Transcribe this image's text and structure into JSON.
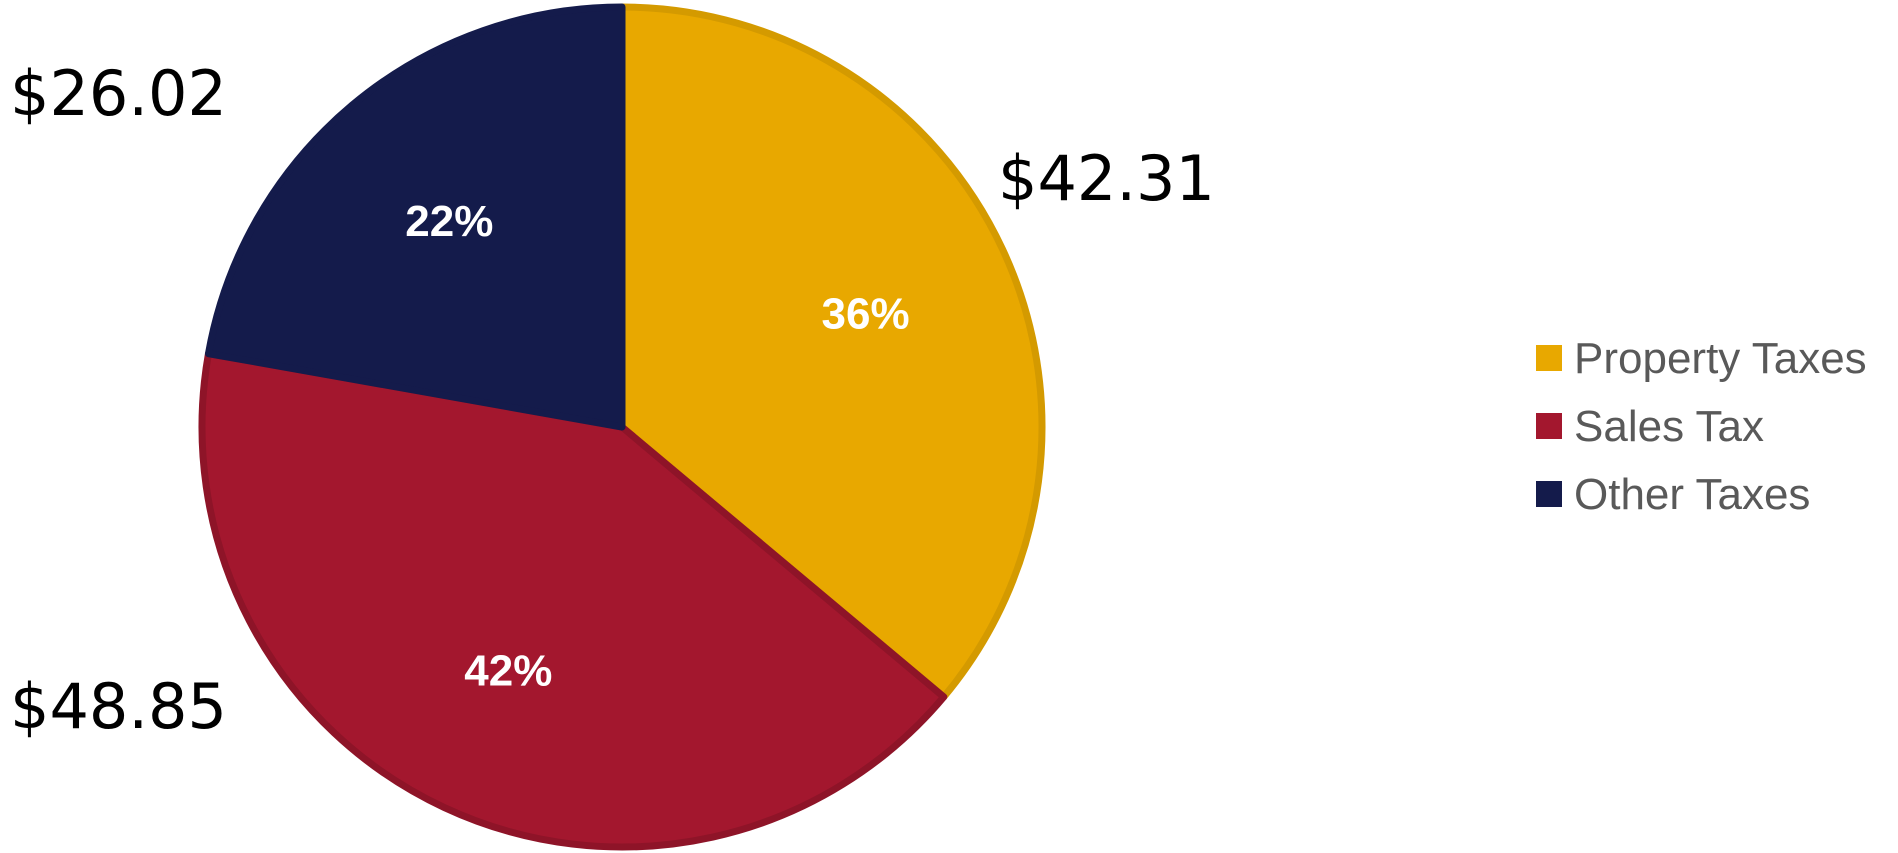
{
  "chart_data": {
    "type": "pie",
    "title": "",
    "slices": [
      {
        "name": "Property Taxes",
        "value": 42.31,
        "value_label": "$42.31",
        "percent_label": "36%",
        "color": "#E8A800",
        "stroke": "#D49A00"
      },
      {
        "name": "Sales Tax",
        "value": 48.85,
        "value_label": "$48.85",
        "percent_label": "42%",
        "color": "#A3172E",
        "stroke": "#8E1428"
      },
      {
        "name": "Other Taxes",
        "value": 26.02,
        "value_label": "$26.02",
        "percent_label": "22%",
        "color": "#141B4B",
        "stroke": "#141B4B"
      }
    ],
    "start_angle": "12 o'clock",
    "direction": "clockwise",
    "legend": {
      "position": "right"
    }
  }
}
